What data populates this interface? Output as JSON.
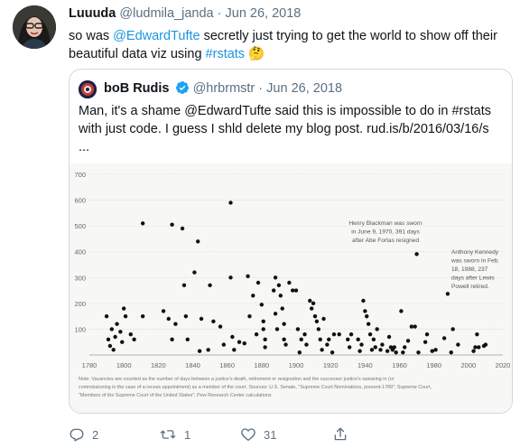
{
  "tweet": {
    "author_name": "Luuuda",
    "handle": "@ludmila_janda",
    "separator": "·",
    "date": "Jun 26, 2018",
    "text_part1": "so was ",
    "mention": "@EdwardTufte",
    "text_part2": " secretly just trying to get the world to show off their beautiful data viz using ",
    "hashtag": "#rstats",
    "emoji": "🤔"
  },
  "quoted": {
    "author_name": "boB Rudis",
    "handle": "@hrbrmstr",
    "separator": "·",
    "date": "Jun 26, 2018",
    "text": "Man, it's a shame @EdwardTufte said this is impossible to do in #rstats with just code. I guess I shld delete my blog post. rud.is/b/2016/03/16/s ..."
  },
  "chart_data": {
    "type": "scatter",
    "title": "",
    "xlabel": "",
    "ylabel": "",
    "xlim": [
      1780,
      2020
    ],
    "ylim": [
      0,
      700
    ],
    "x_ticks": [
      1780,
      1800,
      1820,
      1840,
      1860,
      1880,
      1900,
      1920,
      1940,
      1960,
      1980,
      2000,
      2020
    ],
    "y_ticks": [
      100,
      200,
      300,
      400,
      500,
      600,
      700
    ],
    "grid": true,
    "annotations": [
      {
        "lines": [
          "Henry Blackman was sworn",
          "in June 9, 1970, 391 days",
          "after Abe Fortas resigned"
        ],
        "x": 1970,
        "y": 391
      },
      {
        "lines": [
          "Anthony Kennedy",
          "was sworn in Feb.",
          "18, 1988, 237",
          "days after Lewis",
          "Powell retired."
        ],
        "x": 1988,
        "y": 237
      }
    ],
    "note_lines": [
      "Note: Vacancies are counted as the number of days between a justice's death, retirement or resignation and the successor justice's swearing in (or",
      "commissioning in the case of a recess appointment) as a member of the court. Sources: U.S. Senate, \"Supreme Court Nominations, present-1789\"; Supreme Court,",
      "\"Members of the Supreme Court of the United States\"; Pew Research Center calculations"
    ],
    "points": [
      [
        1790,
        150
      ],
      [
        1791,
        60
      ],
      [
        1792,
        35
      ],
      [
        1793,
        100
      ],
      [
        1794,
        20
      ],
      [
        1795,
        70
      ],
      [
        1796,
        120
      ],
      [
        1798,
        90
      ],
      [
        1799,
        50
      ],
      [
        1800,
        180
      ],
      [
        1801,
        150
      ],
      [
        1804,
        80
      ],
      [
        1806,
        60
      ],
      [
        1811,
        510
      ],
      [
        1811,
        150
      ],
      [
        1823,
        170
      ],
      [
        1826,
        140
      ],
      [
        1828,
        60
      ],
      [
        1828,
        505
      ],
      [
        1830,
        120
      ],
      [
        1834,
        490
      ],
      [
        1835,
        270
      ],
      [
        1836,
        150
      ],
      [
        1837,
        60
      ],
      [
        1841,
        320
      ],
      [
        1843,
        440
      ],
      [
        1844,
        15
      ],
      [
        1845,
        140
      ],
      [
        1849,
        20
      ],
      [
        1850,
        270
      ],
      [
        1852,
        130
      ],
      [
        1856,
        110
      ],
      [
        1858,
        40
      ],
      [
        1862,
        590
      ],
      [
        1862,
        300
      ],
      [
        1863,
        70
      ],
      [
        1864,
        20
      ],
      [
        1867,
        50
      ],
      [
        1870,
        45
      ],
      [
        1872,
        305
      ],
      [
        1873,
        150
      ],
      [
        1875,
        230
      ],
      [
        1877,
        80
      ],
      [
        1878,
        280
      ],
      [
        1880,
        195
      ],
      [
        1881,
        130
      ],
      [
        1881,
        100
      ],
      [
        1882,
        60
      ],
      [
        1882,
        30
      ],
      [
        1887,
        250
      ],
      [
        1888,
        300
      ],
      [
        1888,
        160
      ],
      [
        1889,
        100
      ],
      [
        1890,
        270
      ],
      [
        1891,
        230
      ],
      [
        1892,
        180
      ],
      [
        1893,
        120
      ],
      [
        1893,
        60
      ],
      [
        1894,
        40
      ],
      [
        1896,
        280
      ],
      [
        1898,
        250
      ],
      [
        1900,
        250
      ],
      [
        1901,
        100
      ],
      [
        1902,
        10
      ],
      [
        1903,
        60
      ],
      [
        1905,
        80
      ],
      [
        1906,
        40
      ],
      [
        1908,
        210
      ],
      [
        1909,
        180
      ],
      [
        1910,
        200
      ],
      [
        1911,
        150
      ],
      [
        1912,
        130
      ],
      [
        1913,
        100
      ],
      [
        1914,
        60
      ],
      [
        1915,
        20
      ],
      [
        1916,
        140
      ],
      [
        1918,
        40
      ],
      [
        1919,
        60
      ],
      [
        1921,
        10
      ],
      [
        1922,
        80
      ],
      [
        1925,
        80
      ],
      [
        1930,
        60
      ],
      [
        1931,
        30
      ],
      [
        1932,
        80
      ],
      [
        1936,
        60
      ],
      [
        1937,
        15
      ],
      [
        1938,
        40
      ],
      [
        1939,
        210
      ],
      [
        1940,
        170
      ],
      [
        1941,
        150
      ],
      [
        1942,
        120
      ],
      [
        1943,
        80
      ],
      [
        1944,
        20
      ],
      [
        1945,
        60
      ],
      [
        1946,
        30
      ],
      [
        1947,
        100
      ],
      [
        1949,
        20
      ],
      [
        1950,
        40
      ],
      [
        1953,
        15
      ],
      [
        1954,
        70
      ],
      [
        1955,
        30
      ],
      [
        1956,
        20
      ],
      [
        1957,
        30
      ],
      [
        1958,
        10
      ],
      [
        1961,
        170
      ],
      [
        1962,
        10
      ],
      [
        1963,
        30
      ],
      [
        1965,
        55
      ],
      [
        1967,
        110
      ],
      [
        1969,
        110
      ],
      [
        1970,
        391
      ],
      [
        1971,
        10
      ],
      [
        1975,
        50
      ],
      [
        1976,
        80
      ],
      [
        1979,
        15
      ],
      [
        1981,
        20
      ],
      [
        1986,
        65
      ],
      [
        1988,
        237
      ],
      [
        1990,
        10
      ],
      [
        1991,
        100
      ],
      [
        1994,
        40
      ],
      [
        2003,
        15
      ],
      [
        2004,
        30
      ],
      [
        2005,
        80
      ],
      [
        2006,
        30
      ],
      [
        2009,
        35
      ],
      [
        2010,
        40
      ]
    ]
  },
  "actions": {
    "reply_count": "2",
    "retweet_count": "1",
    "like_count": "31"
  },
  "colors": {
    "link": "#1b95e0",
    "verified": "#1da1f2",
    "muted": "#5b7083",
    "chart_bg": "#f7f7f5",
    "point": "#111111"
  }
}
